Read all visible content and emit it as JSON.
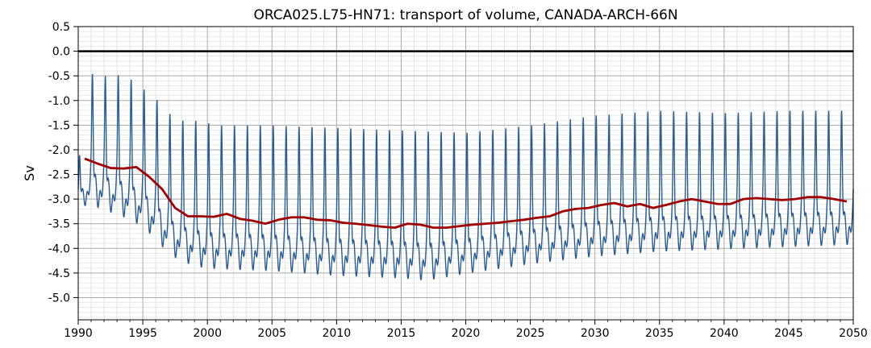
{
  "chart_data": {
    "type": "line",
    "title": "ORCA025.L75-HN71: transport of volume, CANADA-ARCH-66N",
    "xlabel": "",
    "ylabel": "Sv",
    "xlim": [
      1990,
      2050
    ],
    "ylim": [
      -5.45,
      0.5
    ],
    "x_ticks": [
      1990,
      1995,
      2000,
      2005,
      2010,
      2015,
      2020,
      2025,
      2030,
      2035,
      2040,
      2045,
      2050
    ],
    "y_ticks": [
      0.5,
      0.0,
      -0.5,
      -1.0,
      -1.5,
      -2.0,
      -2.5,
      -3.0,
      -3.5,
      -4.0,
      -4.5,
      -5.0
    ],
    "y_tick_labels": [
      "0.5",
      "0.0",
      "-0.5",
      "-1.0",
      "-1.5",
      "-2.0",
      "-2.5",
      "-3.0",
      "-3.5",
      "-4.0",
      "-4.5",
      "-5.0"
    ],
    "grid": true,
    "reference_line": {
      "y": 0.0,
      "color": "#000000"
    },
    "series": [
      {
        "style": "monthly",
        "color": "#2b5c8f",
        "seasonal_cycle": {
          "peak_month_fraction": 0.6,
          "yearly_max": [
            [
              1990,
              -2.3
            ],
            [
              1991,
              -0.45
            ],
            [
              1992,
              -0.5
            ],
            [
              1993,
              -0.47
            ],
            [
              1994,
              -0.55
            ],
            [
              1995,
              -0.75
            ],
            [
              1996,
              -0.95
            ],
            [
              1997,
              -1.25
            ],
            [
              1998,
              -1.4
            ],
            [
              1999,
              -1.4
            ],
            [
              2000,
              -1.45
            ],
            [
              2001,
              -1.5
            ],
            [
              2005,
              -1.5
            ],
            [
              2010,
              -1.55
            ],
            [
              2015,
              -1.6
            ],
            [
              2020,
              -1.65
            ],
            [
              2025,
              -1.5
            ],
            [
              2030,
              -1.3
            ],
            [
              2035,
              -1.2
            ],
            [
              2040,
              -1.25
            ],
            [
              2045,
              -1.2
            ],
            [
              2050,
              -1.2
            ]
          ],
          "yearly_min": [
            [
              1990,
              -3.2
            ],
            [
              1991,
              -3.3
            ],
            [
              1992,
              -3.4
            ],
            [
              1993,
              -3.5
            ],
            [
              1994,
              -3.6
            ],
            [
              1995,
              -3.75
            ],
            [
              1996,
              -4.0
            ],
            [
              1997,
              -4.3
            ],
            [
              1998,
              -4.45
            ],
            [
              1999,
              -4.55
            ],
            [
              2000,
              -4.6
            ],
            [
              2005,
              -4.65
            ],
            [
              2010,
              -4.75
            ],
            [
              2015,
              -4.8
            ],
            [
              2017,
              -4.85
            ],
            [
              2020,
              -4.7
            ],
            [
              2025,
              -4.5
            ],
            [
              2030,
              -4.35
            ],
            [
              2035,
              -4.25
            ],
            [
              2040,
              -4.2
            ],
            [
              2045,
              -4.15
            ],
            [
              2050,
              -4.1
            ]
          ]
        }
      },
      {
        "style": "annual_mean",
        "color": "#a00000",
        "x": [
          1990.5,
          1991.5,
          1992.5,
          1993.5,
          1994.5,
          1995.5,
          1996.5,
          1997.5,
          1998.5,
          1999.5,
          2000.5,
          2001.5,
          2002.5,
          2003.5,
          2004.5,
          2005.5,
          2006.5,
          2007.5,
          2008.5,
          2009.5,
          2010.5,
          2011.5,
          2012.5,
          2013.5,
          2014.5,
          2015.5,
          2016.5,
          2017.5,
          2018.5,
          2019.5,
          2020.5,
          2021.5,
          2022.5,
          2023.5,
          2024.5,
          2025.5,
          2026.5,
          2027.5,
          2028.5,
          2029.5,
          2030.5,
          2031.5,
          2032.5,
          2033.5,
          2034.5,
          2035.5,
          2036.5,
          2037.5,
          2038.5,
          2039.5,
          2040.5,
          2041.5,
          2042.5,
          2043.5,
          2044.5,
          2045.5,
          2046.5,
          2047.5,
          2048.5,
          2049.5
        ],
        "y": [
          -2.18,
          -2.28,
          -2.37,
          -2.38,
          -2.35,
          -2.55,
          -2.8,
          -3.18,
          -3.35,
          -3.35,
          -3.36,
          -3.3,
          -3.4,
          -3.44,
          -3.5,
          -3.42,
          -3.37,
          -3.37,
          -3.42,
          -3.43,
          -3.48,
          -3.5,
          -3.53,
          -3.56,
          -3.58,
          -3.5,
          -3.52,
          -3.58,
          -3.58,
          -3.55,
          -3.52,
          -3.5,
          -3.48,
          -3.45,
          -3.42,
          -3.38,
          -3.35,
          -3.25,
          -3.2,
          -3.18,
          -3.12,
          -3.08,
          -3.15,
          -3.1,
          -3.18,
          -3.12,
          -3.05,
          -3.0,
          -3.05,
          -3.1,
          -3.1,
          -3.0,
          -2.98,
          -3.0,
          -3.02,
          -3.0,
          -2.96,
          -2.96,
          -3.0,
          -3.05
        ]
      }
    ]
  }
}
